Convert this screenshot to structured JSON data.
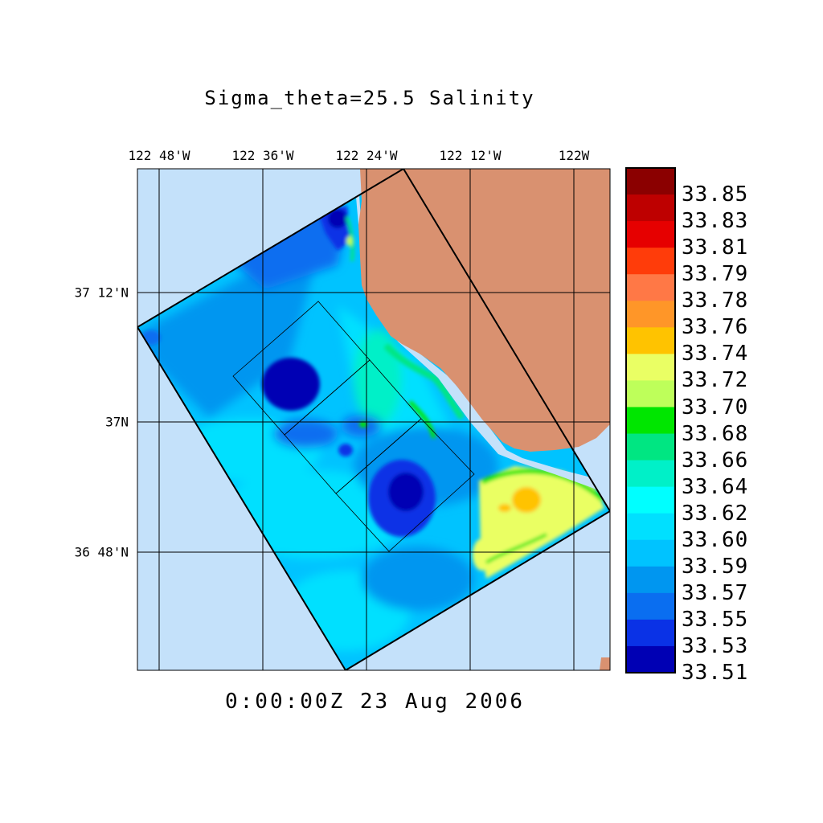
{
  "title": "Sigma_theta=25.5 Salinity",
  "timestamp": "0:00:00Z  23 Aug 2006",
  "map": {
    "lon_labels": [
      "122 48'W",
      "122 36'W",
      "122 24'W",
      "122 12'W",
      "122W"
    ],
    "lat_labels": [
      "37 12'N",
      "37N",
      "36 48'N"
    ]
  },
  "colors": {
    "ocean_background": "#c4e1fa",
    "land": "#d99170"
  },
  "colorbar": {
    "labels": [
      "33.85",
      "33.83",
      "33.81",
      "33.79",
      "33.78",
      "33.76",
      "33.74",
      "33.72",
      "33.70",
      "33.68",
      "33.66",
      "33.64",
      "33.62",
      "33.60",
      "33.59",
      "33.57",
      "33.55",
      "33.53",
      "33.51"
    ],
    "colors": [
      "#8b0000",
      "#be0000",
      "#e60000",
      "#ff3c0a",
      "#ff7846",
      "#ff9628",
      "#ffc300",
      "#eaff64",
      "#beff5a",
      "#00e600",
      "#00e682",
      "#00f0c8",
      "#00ffff",
      "#00e0ff",
      "#00c3ff",
      "#0096f0",
      "#0a6ef0",
      "#0a32e6",
      "#0000b4"
    ]
  }
}
